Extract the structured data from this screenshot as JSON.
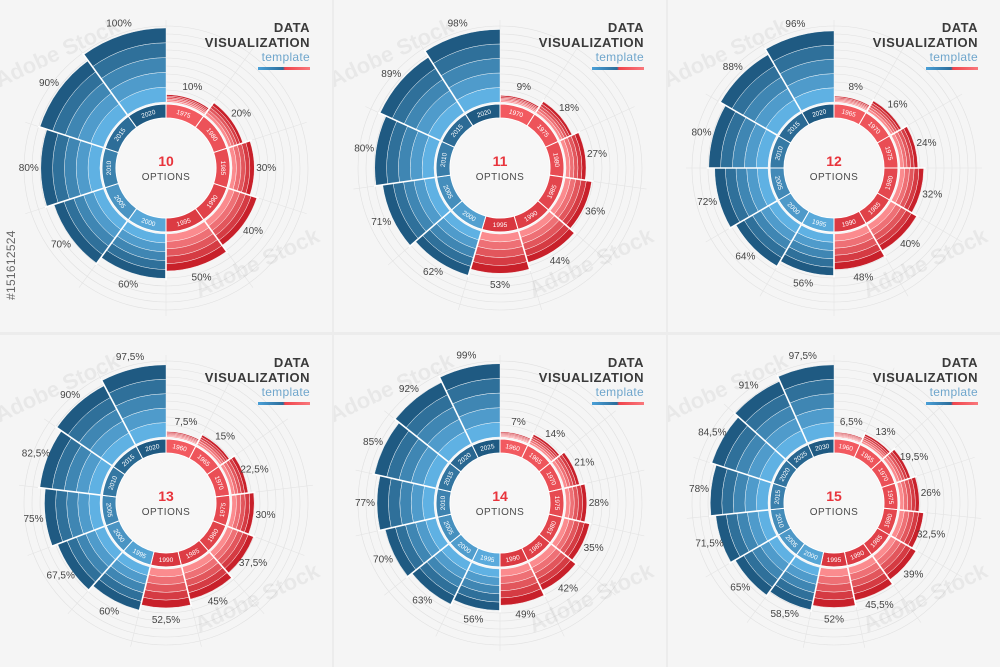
{
  "header": {
    "title": "DATA VISUALIZATION",
    "subtitle": "template"
  },
  "side_text": "#151612524",
  "watermark_text": "Adobe Stock",
  "colors": {
    "blue_dark": "#1f5a82",
    "blue_mid": "#2f7cb0",
    "blue_light": "#5fb1e3",
    "red_dark": "#c8202a",
    "red_mid": "#ee3f46",
    "red_light": "#fb8b8e"
  },
  "chart_data": [
    {
      "type": "pie",
      "title": "",
      "center_number": "10",
      "center_label": "OPTIONS",
      "categories": [
        "10%",
        "20%",
        "30%",
        "40%",
        "50%",
        "60%",
        "70%",
        "80%",
        "90%",
        "100%"
      ],
      "values": [
        10,
        20,
        30,
        40,
        50,
        60,
        70,
        80,
        90,
        100
      ],
      "years": [
        "1975",
        "1980",
        "1985",
        "1990",
        "1995",
        "2000",
        "2005",
        "2010",
        "2015",
        "2020"
      ]
    },
    {
      "type": "pie",
      "title": "",
      "center_number": "11",
      "center_label": "OPTIONS",
      "categories": [
        "9%",
        "18%",
        "27%",
        "36%",
        "44%",
        "53%",
        "62%",
        "71%",
        "80%",
        "89%",
        "98%"
      ],
      "values": [
        9,
        18,
        27,
        36,
        44,
        53,
        62,
        71,
        80,
        89,
        98
      ],
      "years": [
        "1970",
        "1975",
        "1980",
        "1985",
        "1990",
        "1995",
        "2000",
        "2005",
        "2010",
        "2015",
        "2020"
      ]
    },
    {
      "type": "pie",
      "title": "",
      "center_number": "12",
      "center_label": "OPTIONS",
      "categories": [
        "8%",
        "16%",
        "24%",
        "32%",
        "40%",
        "48%",
        "56%",
        "64%",
        "72%",
        "80%",
        "88%",
        "96%"
      ],
      "values": [
        8,
        16,
        24,
        32,
        40,
        48,
        56,
        64,
        72,
        80,
        88,
        96
      ],
      "years": [
        "1965",
        "1970",
        "1975",
        "1980",
        "1985",
        "1990",
        "1995",
        "2000",
        "2005",
        "2010",
        "2015",
        "2020"
      ]
    },
    {
      "type": "pie",
      "title": "",
      "center_number": "13",
      "center_label": "OPTIONS",
      "categories": [
        "7,5%",
        "15%",
        "22,5%",
        "30%",
        "37,5%",
        "45%",
        "52,5%",
        "60%",
        "67,5%",
        "75%",
        "82,5%",
        "90%",
        "97,5%"
      ],
      "values": [
        7.5,
        15,
        22.5,
        30,
        37.5,
        45,
        52.5,
        60,
        67.5,
        75,
        82.5,
        90,
        97.5
      ],
      "years": [
        "1960",
        "1965",
        "1970",
        "1975",
        "1980",
        "1985",
        "1990",
        "1995",
        "2000",
        "2005",
        "2010",
        "2015",
        "2020"
      ]
    },
    {
      "type": "pie",
      "title": "",
      "center_number": "14",
      "center_label": "OPTIONS",
      "categories": [
        "7%",
        "14%",
        "21%",
        "28%",
        "35%",
        "42%",
        "49%",
        "56%",
        "63%",
        "70%",
        "77%",
        "85%",
        "92%",
        "99%"
      ],
      "values": [
        7,
        14,
        21,
        28,
        35,
        42,
        49,
        56,
        63,
        70,
        77,
        85,
        92,
        99
      ],
      "years": [
        "1960",
        "1965",
        "1970",
        "1975",
        "1980",
        "1985",
        "1990",
        "1995",
        "2000",
        "2005",
        "2010",
        "2015",
        "2020",
        "2025"
      ]
    },
    {
      "type": "pie",
      "title": "",
      "center_number": "15",
      "center_label": "OPTIONS",
      "categories": [
        "6,5%",
        "13%",
        "19,5%",
        "26%",
        "32,5%",
        "39%",
        "45,5%",
        "52%",
        "58,5%",
        "65%",
        "71,5%",
        "78%",
        "84,5%",
        "91%",
        "97,5%"
      ],
      "values": [
        6.5,
        13,
        19.5,
        26,
        32.5,
        39,
        45.5,
        52,
        58.5,
        65,
        71.5,
        78,
        84.5,
        91,
        97.5
      ],
      "years": [
        "1960",
        "1965",
        "1970",
        "1975",
        "1980",
        "1985",
        "1990",
        "1995",
        "2000",
        "2005",
        "2010",
        "2015",
        "2020",
        "2025",
        "2030"
      ]
    }
  ]
}
